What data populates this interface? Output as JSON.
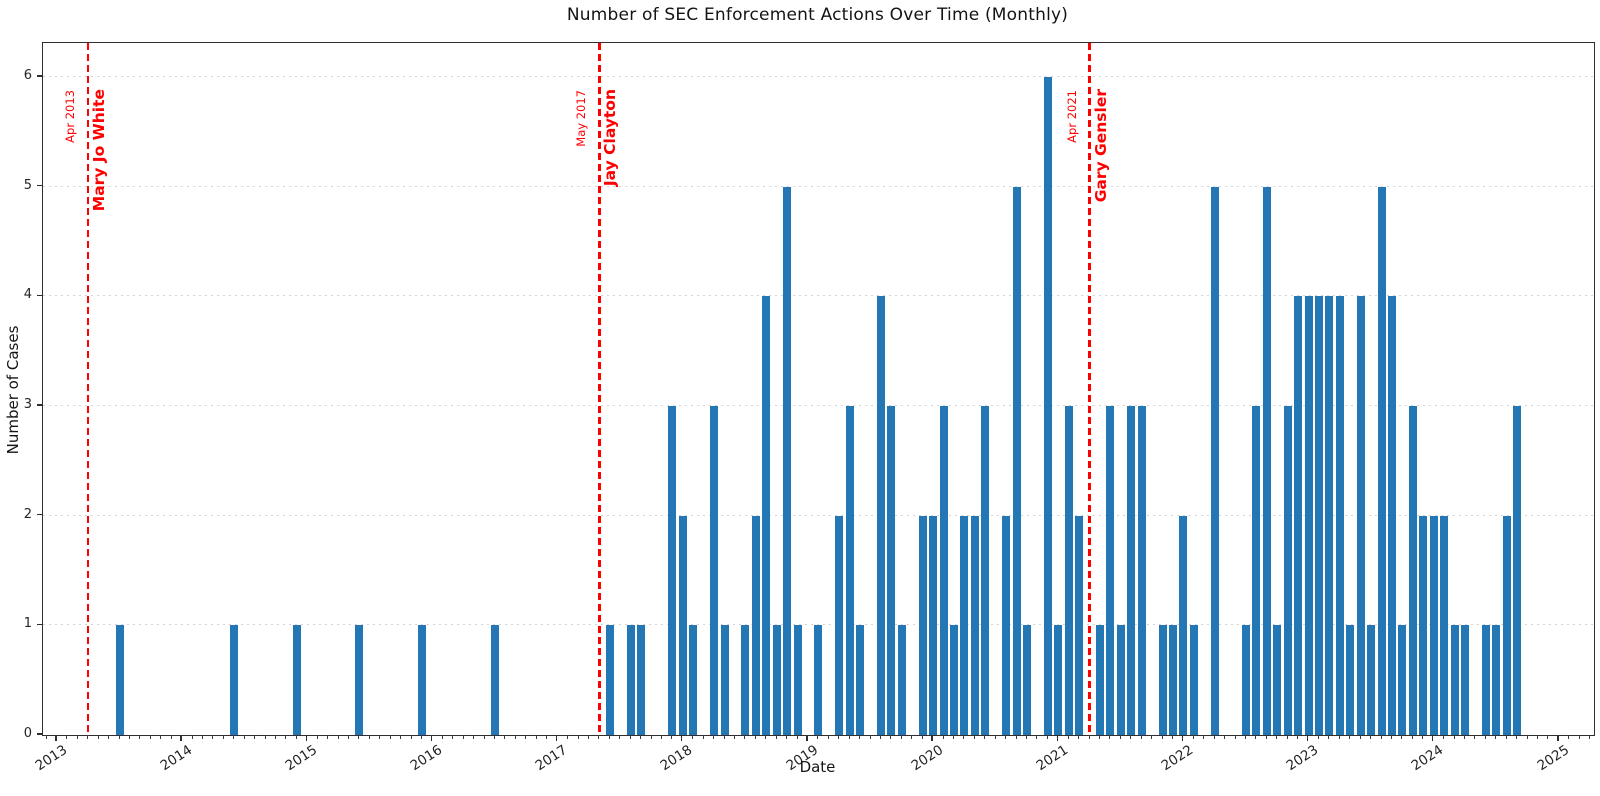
{
  "title": "Number of SEC Enforcement Actions Over Time (Monthly)",
  "colors": {
    "bar": "#2277b4",
    "annotation": "#ff0000",
    "grid": "#cdcdcd",
    "spine": "#2e2e2e",
    "text": "#141414"
  },
  "annotations": [
    {
      "date_label": "Apr 2013",
      "name": "Mary Jo White",
      "month": "2013-04"
    },
    {
      "date_label": "May 2017",
      "name": "Jay Clayton",
      "month": "2017-05"
    },
    {
      "date_label": "Apr 2021",
      "name": "Gary Gensler",
      "month": "2021-04"
    }
  ],
  "chart_data": {
    "type": "bar",
    "title": "Number of SEC Enforcement Actions Over Time (Monthly)",
    "xlabel": "Date",
    "ylabel": "Number of Cases",
    "x_tick_labels": [
      "2013",
      "2014",
      "2015",
      "2016",
      "2017",
      "2018",
      "2019",
      "2020",
      "2021",
      "2022",
      "2023",
      "2024",
      "2025"
    ],
    "y_tick_labels": [
      0,
      1,
      2,
      3,
      4,
      5,
      6
    ],
    "ylim": [
      0,
      6.31
    ],
    "x_start_month": "2013-01",
    "grid": "horizontal-dotted",
    "legend": "none",
    "points": [
      {
        "month": "2013-07",
        "value": 1
      },
      {
        "month": "2014-06",
        "value": 1
      },
      {
        "month": "2014-12",
        "value": 1
      },
      {
        "month": "2015-06",
        "value": 1
      },
      {
        "month": "2015-12",
        "value": 1
      },
      {
        "month": "2016-07",
        "value": 1
      },
      {
        "month": "2017-06",
        "value": 1
      },
      {
        "month": "2017-08",
        "value": 1
      },
      {
        "month": "2017-09",
        "value": 1
      },
      {
        "month": "2017-12",
        "value": 3
      },
      {
        "month": "2018-01",
        "value": 2
      },
      {
        "month": "2018-02",
        "value": 1
      },
      {
        "month": "2018-04",
        "value": 3
      },
      {
        "month": "2018-05",
        "value": 1
      },
      {
        "month": "2018-07",
        "value": 1
      },
      {
        "month": "2018-08",
        "value": 2
      },
      {
        "month": "2018-09",
        "value": 4
      },
      {
        "month": "2018-10",
        "value": 1
      },
      {
        "month": "2018-11",
        "value": 5
      },
      {
        "month": "2018-12",
        "value": 1
      },
      {
        "month": "2019-02",
        "value": 1
      },
      {
        "month": "2019-04",
        "value": 2
      },
      {
        "month": "2019-05",
        "value": 3
      },
      {
        "month": "2019-06",
        "value": 1
      },
      {
        "month": "2019-08",
        "value": 4
      },
      {
        "month": "2019-09",
        "value": 3
      },
      {
        "month": "2019-10",
        "value": 1
      },
      {
        "month": "2019-12",
        "value": 2
      },
      {
        "month": "2020-01",
        "value": 2
      },
      {
        "month": "2020-02",
        "value": 3
      },
      {
        "month": "2020-03",
        "value": 1
      },
      {
        "month": "2020-04",
        "value": 2
      },
      {
        "month": "2020-05",
        "value": 2
      },
      {
        "month": "2020-06",
        "value": 3
      },
      {
        "month": "2020-08",
        "value": 2
      },
      {
        "month": "2020-09",
        "value": 5
      },
      {
        "month": "2020-10",
        "value": 1
      },
      {
        "month": "2020-12",
        "value": 6
      },
      {
        "month": "2021-01",
        "value": 1
      },
      {
        "month": "2021-02",
        "value": 3
      },
      {
        "month": "2021-03",
        "value": 2
      },
      {
        "month": "2021-05",
        "value": 1
      },
      {
        "month": "2021-06",
        "value": 3
      },
      {
        "month": "2021-07",
        "value": 1
      },
      {
        "month": "2021-08",
        "value": 3
      },
      {
        "month": "2021-09",
        "value": 3
      },
      {
        "month": "2021-11",
        "value": 1
      },
      {
        "month": "2021-12",
        "value": 1
      },
      {
        "month": "2022-01",
        "value": 2
      },
      {
        "month": "2022-02",
        "value": 1
      },
      {
        "month": "2022-04",
        "value": 5
      },
      {
        "month": "2022-07",
        "value": 1
      },
      {
        "month": "2022-08",
        "value": 3
      },
      {
        "month": "2022-09",
        "value": 5
      },
      {
        "month": "2022-10",
        "value": 1
      },
      {
        "month": "2022-11",
        "value": 3
      },
      {
        "month": "2022-12",
        "value": 4
      },
      {
        "month": "2023-01",
        "value": 4
      },
      {
        "month": "2023-02",
        "value": 4
      },
      {
        "month": "2023-03",
        "value": 4
      },
      {
        "month": "2023-04",
        "value": 4
      },
      {
        "month": "2023-05",
        "value": 1
      },
      {
        "month": "2023-06",
        "value": 4
      },
      {
        "month": "2023-07",
        "value": 1
      },
      {
        "month": "2023-08",
        "value": 5
      },
      {
        "month": "2023-09",
        "value": 4
      },
      {
        "month": "2023-10",
        "value": 1
      },
      {
        "month": "2023-11",
        "value": 3
      },
      {
        "month": "2023-12",
        "value": 2
      },
      {
        "month": "2024-01",
        "value": 2
      },
      {
        "month": "2024-02",
        "value": 2
      },
      {
        "month": "2024-03",
        "value": 1
      },
      {
        "month": "2024-04",
        "value": 1
      },
      {
        "month": "2024-06",
        "value": 1
      },
      {
        "month": "2024-07",
        "value": 1
      },
      {
        "month": "2024-08",
        "value": 2
      },
      {
        "month": "2024-09",
        "value": 3
      }
    ]
  }
}
